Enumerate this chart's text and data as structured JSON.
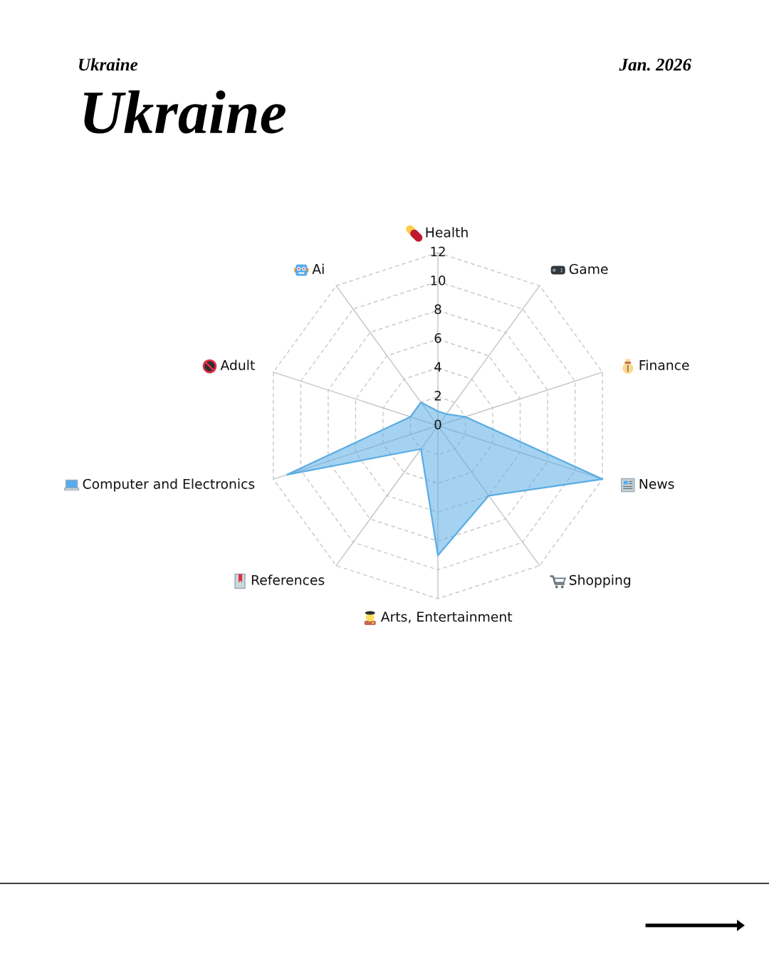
{
  "chart_data": {
    "type": "radar",
    "title": "Ukraine",
    "subtitle": "Ukraine",
    "annotations": [
      "Jan. 2026"
    ],
    "categories": [
      "Health",
      "Game",
      "Finance",
      "News",
      "Shopping",
      "Arts, Entertainment",
      "References",
      "Computer and Electronics",
      "Adult",
      "Ai"
    ],
    "series": [
      {
        "color": "#5aade3",
        "values": [
          1,
          1,
          2,
          12,
          6,
          9,
          2,
          11,
          2,
          2
        ]
      }
    ],
    "ylim": [
      0,
      12
    ],
    "yticks": [
      0,
      2,
      4,
      6,
      8,
      10,
      12
    ],
    "grid": true
  }
}
